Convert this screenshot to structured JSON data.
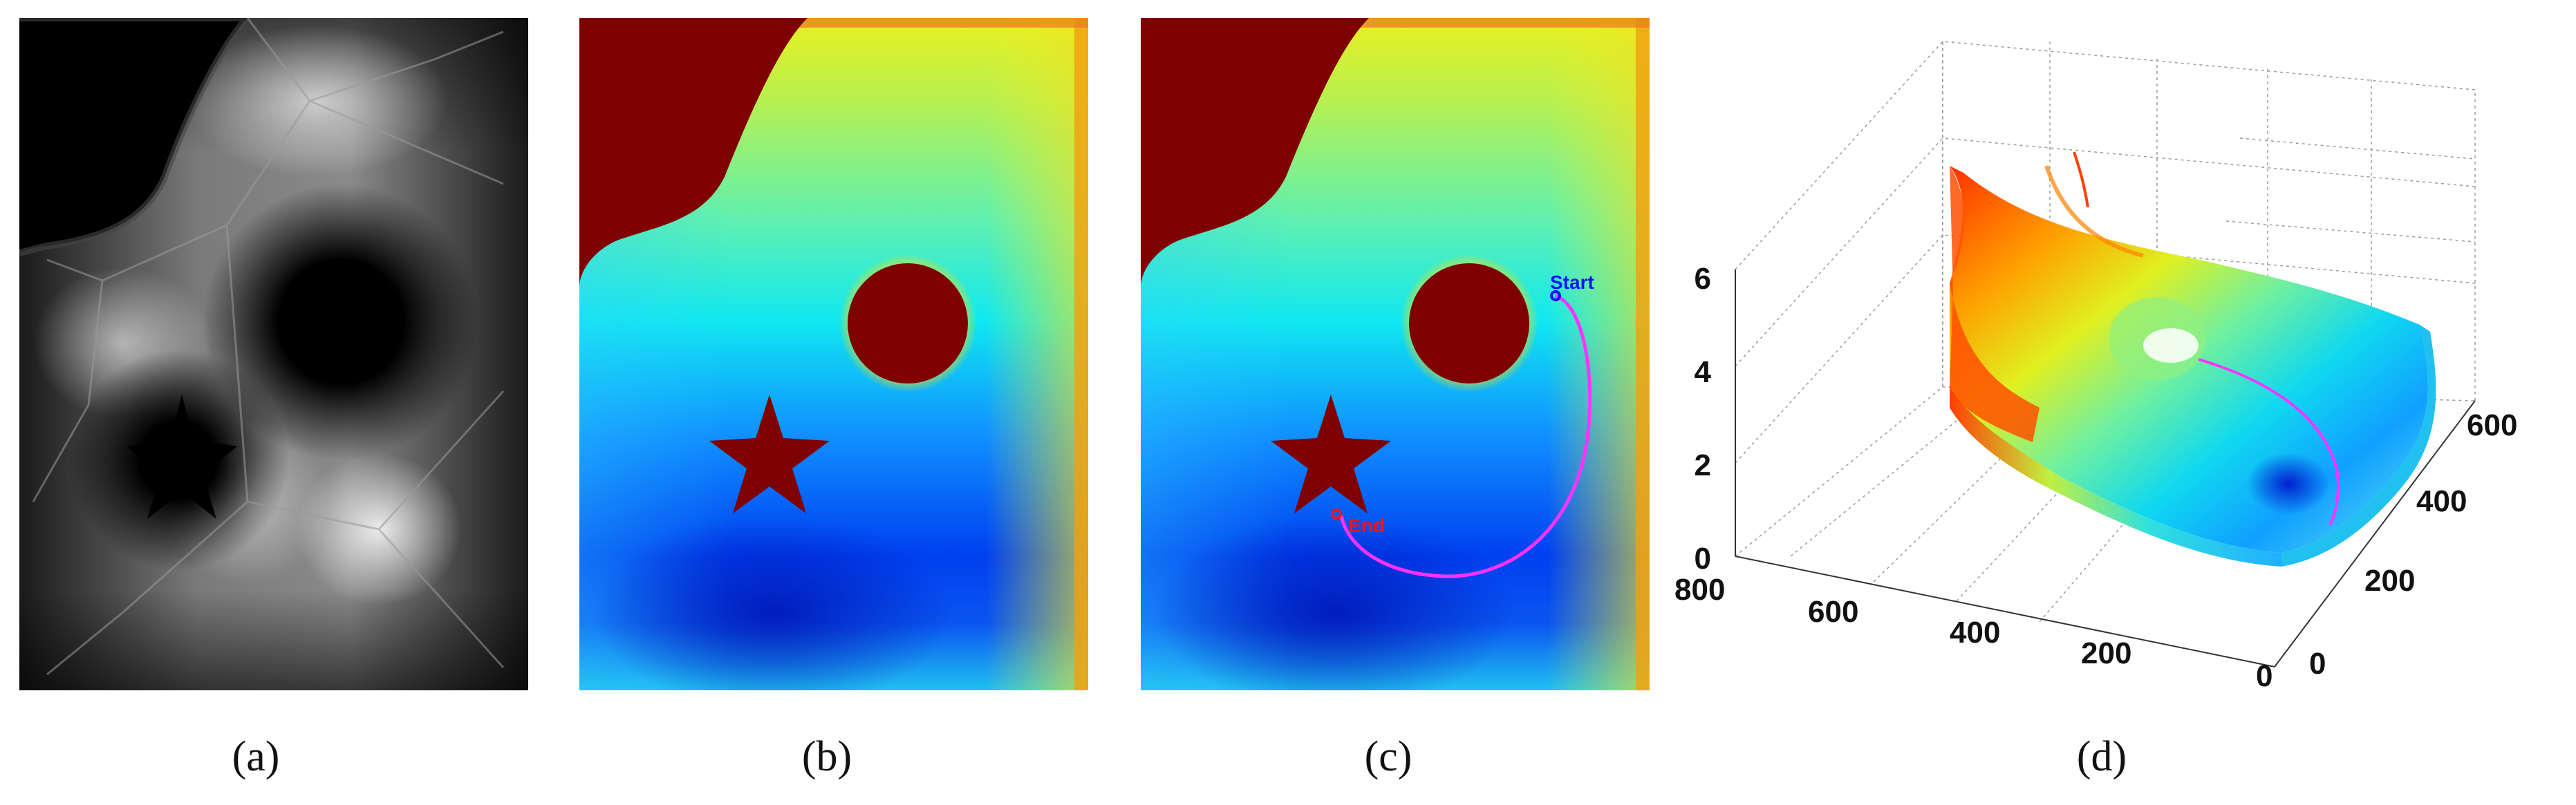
{
  "figure": {
    "panels": [
      {
        "id": "a",
        "caption": "(a)"
      },
      {
        "id": "b",
        "caption": "(b)"
      },
      {
        "id": "c",
        "caption": "(c)"
      },
      {
        "id": "d",
        "caption": "(d)"
      }
    ],
    "path_labels": {
      "start": "Start",
      "end": "End"
    },
    "colors": {
      "obstacle": "#7f0000",
      "path": "#ff33ff",
      "start_label": "#1010ff",
      "end_label": "#ff1010"
    }
  },
  "chart_data": {
    "type": "surface",
    "zlim": [
      0,
      7
    ],
    "z_ticks": [
      "0",
      "2",
      "4",
      "6"
    ],
    "x_ticks": [
      "0",
      "200",
      "400",
      "600",
      "800"
    ],
    "y_ticks": [
      "0",
      "200",
      "400",
      "600"
    ]
  }
}
